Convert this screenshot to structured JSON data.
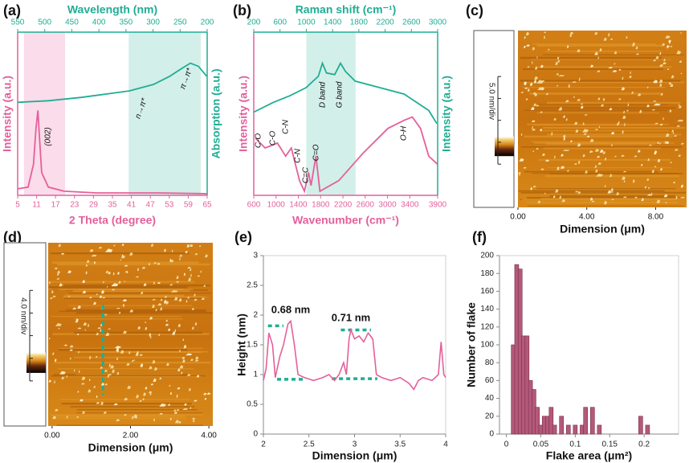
{
  "chart_data": [
    {
      "type": "dual-line",
      "panel": "(a)",
      "xlabel": "2 Theta (degree)",
      "x2label": "Wavelength (nm)",
      "ylabel": "Intensity (a.u.)",
      "y2label": "Absorption (a.u.)",
      "xlim": [
        5,
        65
      ],
      "xticks": [
        5,
        11,
        17,
        23,
        29,
        35,
        41,
        47,
        53,
        59,
        65
      ],
      "x2lim": [
        550,
        200
      ],
      "x2ticks": [
        550,
        500,
        450,
        400,
        350,
        300,
        250,
        200
      ],
      "ylim": [
        0,
        100
      ],
      "bands": [
        {
          "axis": "x",
          "range": [
            7,
            20
          ],
          "color": "#fbdcea"
        },
        {
          "axis": "x2",
          "range": [
            345,
            212
          ],
          "color": "#d3efe9"
        }
      ],
      "series": [
        {
          "color": "#e4609b",
          "x": [
            5,
            8.3,
            10,
            10.8,
            11.4,
            11.9,
            12.6,
            14.7,
            19.7,
            30,
            50,
            65
          ],
          "values": [
            4,
            5,
            19,
            41,
            52,
            36,
            14,
            5,
            2.5,
            1.5,
            1.5,
            1
          ]
        },
        {
          "color": "#1fae94",
          "axis": "x2",
          "x": [
            550,
            493,
            433,
            388,
            344,
            299,
            269,
            246,
            231,
            216,
            201
          ],
          "values": [
            57,
            58,
            60,
            62,
            64,
            68,
            73,
            78,
            81,
            79,
            73
          ]
        }
      ],
      "annotations": [
        "(002)",
        "n→π*",
        "π→π*"
      ]
    },
    {
      "type": "dual-line",
      "panel": "(b)",
      "xlabel": "Wavenumber (cm⁻¹)",
      "x2label": "Raman shift (cm⁻¹)",
      "ylabel": "Intensity (a.u.)",
      "y2label": "Intensity (a.u.)",
      "xlim": [
        600,
        3900
      ],
      "xticks": [
        600,
        1000,
        1400,
        1800,
        2200,
        2600,
        3000,
        3400,
        3900
      ],
      "x2lim": [
        200,
        3000
      ],
      "x2ticks": [
        200,
        600,
        1000,
        1400,
        1800,
        2200,
        2600,
        3000
      ],
      "ylim": [
        0,
        100
      ],
      "bands": [
        {
          "axis": "x2",
          "range": [
            1000,
            1750
          ],
          "color": "#d3efe9"
        }
      ],
      "series": [
        {
          "color": "#e4609b",
          "x": [
            630,
            805,
            1025,
            1172,
            1275,
            1421,
            1510,
            1583,
            1627,
            1715,
            1788,
            2126,
            2566,
            3006,
            3300,
            3446,
            3593,
            3740,
            3900
          ],
          "values": [
            35,
            29,
            32,
            24,
            29,
            9,
            2.5,
            14,
            6,
            24,
            2.5,
            9,
            26,
            41,
            46,
            48,
            41,
            24,
            19
          ]
        },
        {
          "color": "#1fae94",
          "axis": "x2",
          "x": [
            200,
            499,
            748,
            997,
            1184,
            1246,
            1308,
            1433,
            1520,
            1595,
            1744,
            2118,
            2491,
            2864,
            2987
          ],
          "values": [
            51,
            57,
            61,
            66,
            73,
            81,
            75,
            74,
            81,
            76,
            70,
            66,
            62,
            52,
            44
          ]
        }
      ],
      "annotations": [
        "C-O",
        "C-O",
        "C-N",
        "C-N",
        "C=C",
        "C=O",
        "O-H",
        "D band",
        "G band"
      ]
    },
    {
      "type": "image",
      "panel": "(c)",
      "xlabel": "Dimension  (μm)",
      "colorbar_label": "5.0 nm/div",
      "xlim": [
        0,
        9.8
      ],
      "xticks": [
        {
          "value": 0,
          "label": "0.00"
        },
        {
          "value": 4,
          "label": "4.00"
        },
        {
          "value": 8,
          "label": "8.00"
        }
      ]
    },
    {
      "type": "image",
      "panel": "(d)",
      "xlabel": "Dimension  (μm)",
      "colorbar_label": "4.0 nm/div",
      "xlim": [
        -0.1,
        4.1
      ],
      "xticks": [
        {
          "value": 0,
          "label": "0.00"
        },
        {
          "value": 2,
          "label": "2.00"
        },
        {
          "value": 4,
          "label": "4.00"
        }
      ],
      "profile_x": 1.3,
      "profile_color": "#1fae94"
    },
    {
      "type": "line",
      "panel": "(e)",
      "xlabel": "Dimension  (μm)",
      "ylabel": "Height (nm)",
      "xlim": [
        2,
        4
      ],
      "xticks": [
        2,
        2.5,
        3,
        3.5,
        4
      ],
      "ylim": [
        0,
        3
      ],
      "yticks": [
        0,
        0.5,
        1,
        1.5,
        2,
        2.5,
        3
      ],
      "color": "#e4609b",
      "x": [
        2.0,
        2.03,
        2.06,
        2.1,
        2.13,
        2.18,
        2.22,
        2.27,
        2.3,
        2.34,
        2.38,
        2.45,
        2.55,
        2.65,
        2.72,
        2.78,
        2.83,
        2.88,
        2.91,
        2.94,
        2.96,
        3.0,
        3.05,
        3.1,
        3.15,
        3.2,
        3.24,
        3.3,
        3.4,
        3.5,
        3.6,
        3.65,
        3.7,
        3.75,
        3.85,
        3.92,
        3.95,
        3.98,
        4.0
      ],
      "values": [
        0.9,
        1.1,
        1.7,
        1.5,
        0.95,
        1.3,
        1.5,
        1.85,
        1.9,
        1.5,
        1.0,
        0.95,
        0.9,
        0.95,
        1.0,
        0.9,
        1.0,
        1.2,
        1.0,
        1.6,
        1.75,
        1.6,
        1.65,
        1.55,
        1.7,
        1.6,
        1.0,
        0.95,
        0.9,
        0.95,
        0.85,
        0.75,
        0.9,
        0.95,
        0.9,
        1.0,
        1.55,
        1.0,
        0.95
      ],
      "guides": [
        {
          "x": [
            2.05,
            2.22
          ],
          "y": 1.82
        },
        {
          "x": [
            2.15,
            2.45
          ],
          "y": 0.92
        },
        {
          "x": [
            2.85,
            3.18
          ],
          "y": 1.75
        },
        {
          "x": [
            2.75,
            3.25
          ],
          "y": 0.93
        }
      ],
      "guide_color": "#1fae94",
      "annotations": [
        "0.68 nm",
        "0.71 nm"
      ]
    },
    {
      "type": "bar",
      "panel": "(f)",
      "xlabel": "Flake area (μm²)",
      "ylabel": "Number of flake",
      "xlim": [
        -0.01,
        0.25
      ],
      "xticks": [
        0,
        0.05,
        0.1,
        0.15,
        0.2
      ],
      "ylim": [
        0,
        200
      ],
      "yticks": [
        0,
        20,
        40,
        60,
        80,
        100,
        120,
        140,
        160,
        180,
        200
      ],
      "color": "#b4597a",
      "x": [
        0.01,
        0.015,
        0.02,
        0.025,
        0.03,
        0.035,
        0.04,
        0.045,
        0.05,
        0.055,
        0.06,
        0.065,
        0.07,
        0.08,
        0.09,
        0.1,
        0.11,
        0.115,
        0.125,
        0.135,
        0.195,
        0.205
      ],
      "values": [
        100,
        190,
        185,
        110,
        110,
        60,
        50,
        30,
        10,
        20,
        20,
        30,
        10,
        20,
        10,
        10,
        10,
        30,
        30,
        10,
        20,
        10
      ]
    }
  ]
}
